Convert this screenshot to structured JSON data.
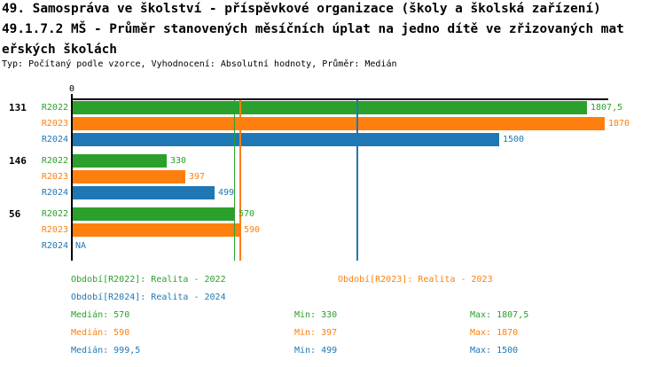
{
  "title": {
    "line1": "49. Samospráva ve školství - příspěvkové organizace (školy a školská zařízení)",
    "line2": "49.1.7.2 MŠ - Průměr stanovených měsíčních úplat na jedno dítě ve zřizovaných mat",
    "line3": "eřských školách",
    "meta": "Typ: Počítaný podle vzorce, Vyhodnocení: Absolutní hodnoty, Průměr: Medián"
  },
  "chart_data": {
    "type": "bar",
    "orientation": "horizontal",
    "title": "49.1.7.2 MŠ - Průměr stanovených měsíčních úplat na jedno dítě ve zřizovaných mateřských školách",
    "axis": {
      "tick_label": "0",
      "min": 0
    },
    "series_colors": {
      "R2022": "#2ca02c",
      "R2023": "#ff7f0e",
      "R2024": "#1f77b4"
    },
    "groups": [
      {
        "label": "131",
        "bars": [
          {
            "series": "R2022",
            "value": 1807.5,
            "display": "1807,5"
          },
          {
            "series": "R2023",
            "value": 1870,
            "display": "1870"
          },
          {
            "series": "R2024",
            "value": 1500,
            "display": "1500"
          }
        ]
      },
      {
        "label": "146",
        "bars": [
          {
            "series": "R2022",
            "value": 330,
            "display": "330"
          },
          {
            "series": "R2023",
            "value": 397,
            "display": "397"
          },
          {
            "series": "R2024",
            "value": 499,
            "display": "499"
          }
        ]
      },
      {
        "label": "56",
        "bars": [
          {
            "series": "R2022",
            "value": 570,
            "display": "570"
          },
          {
            "series": "R2023",
            "value": 590,
            "display": "590"
          },
          {
            "series": "R2024",
            "value": null,
            "display": "NA"
          }
        ]
      }
    ],
    "median_lines": [
      {
        "series": "R2022",
        "value": 570
      },
      {
        "series": "R2023",
        "value": 590
      },
      {
        "series": "R2024",
        "value": 999.5
      }
    ]
  },
  "legend": [
    {
      "series": "R2022",
      "label": "Období[R2022]: Realita - 2022"
    },
    {
      "series": "R2023",
      "label": "Období[R2023]: Realita - 2023"
    },
    {
      "series": "R2024",
      "label": "Období[R2024]: Realita - 2024"
    }
  ],
  "stats": [
    {
      "series": "R2022",
      "median": "Medián: 570",
      "min": "Min: 330",
      "max": "Max: 1807,5"
    },
    {
      "series": "R2023",
      "median": "Medián: 590",
      "min": "Min: 397",
      "max": "Max: 1870"
    },
    {
      "series": "R2024",
      "median": "Medián: 999,5",
      "min": "Min: 499",
      "max": "Max: 1500"
    }
  ],
  "colors": {
    "green": "#2ca02c",
    "orange": "#ff7f0e",
    "blue": "#1f77b4",
    "axis": "#000000",
    "background": "#ffffff"
  }
}
